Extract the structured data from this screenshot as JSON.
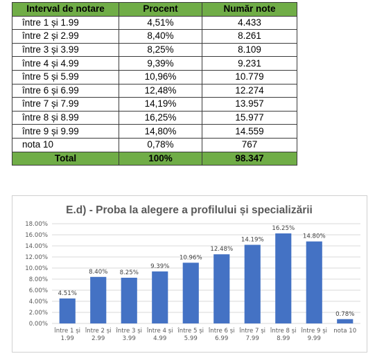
{
  "table": {
    "headers": [
      "Interval de notare",
      "Procent",
      "Număr note"
    ],
    "rows": [
      [
        "între 1 și 1.99",
        "4,51%",
        "4.433"
      ],
      [
        "între 2 și 2.99",
        "8,40%",
        "8.261"
      ],
      [
        "între 3 și 3.99",
        "8,25%",
        "8.109"
      ],
      [
        "între 4 și 4.99",
        "9,39%",
        "9.231"
      ],
      [
        "între 5 și 5.99",
        "10,96%",
        "10.779"
      ],
      [
        "între 6 și 6.99",
        "12,48%",
        "12.274"
      ],
      [
        "între 7 și 7.99",
        "14,19%",
        "13.957"
      ],
      [
        "între 8 și 8.99",
        "16,25%",
        "15.977"
      ],
      [
        "între 9 și 9.99",
        "14,80%",
        "14.559"
      ],
      [
        "nota 10",
        "0,78%",
        "767"
      ]
    ],
    "total": [
      "Total",
      "100%",
      "98.347"
    ],
    "header_color": "#70ad47"
  },
  "chart_data": {
    "type": "bar",
    "title": "E.d) - Proba la alegere a profilului și specializării",
    "categories": [
      [
        "între 1 și",
        "1.99"
      ],
      [
        "între 2 și",
        "2.99"
      ],
      [
        "între 3 și",
        "3.99"
      ],
      [
        "între 4 și",
        "4.99"
      ],
      [
        "între 5 și",
        "5.99"
      ],
      [
        "între 6 și",
        "6.99"
      ],
      [
        "între 7 și",
        "7.99"
      ],
      [
        "între 8 și",
        "8.99"
      ],
      [
        "între 9 și",
        "9.99"
      ],
      [
        "nota 10"
      ]
    ],
    "values": [
      4.51,
      8.4,
      8.25,
      9.39,
      10.96,
      12.48,
      14.19,
      16.25,
      14.8,
      0.78
    ],
    "data_labels": [
      "4.51%",
      "8.40%",
      "8.25%",
      "9.39%",
      "10.96%",
      "12.48%",
      "14.19%",
      "16.25%",
      "14.80%",
      "0.78%"
    ],
    "yticks": [
      "0.00%",
      "2.00%",
      "4.00%",
      "6.00%",
      "8.00%",
      "10.00%",
      "12.00%",
      "14.00%",
      "16.00%",
      "18.00%"
    ],
    "ylim": [
      0,
      18
    ],
    "grid": true,
    "bar_color": "#4472c4",
    "xlabel": "",
    "ylabel": ""
  }
}
